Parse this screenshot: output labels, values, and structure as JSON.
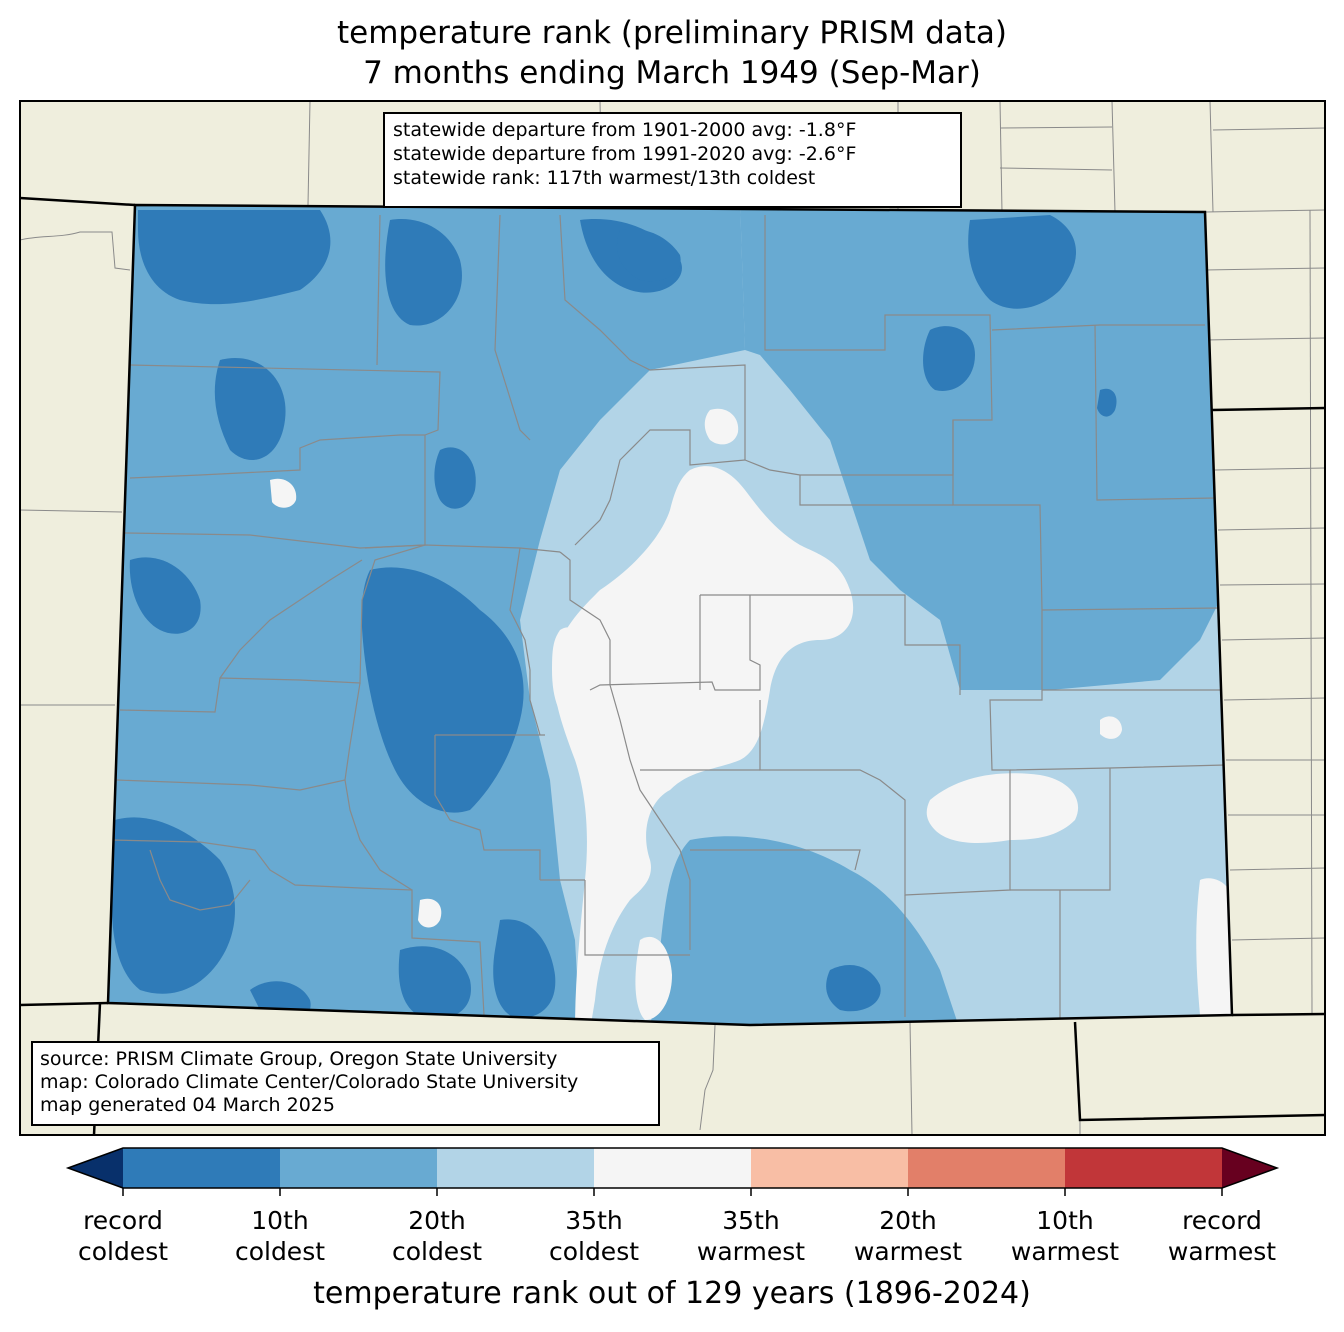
{
  "title": {
    "line1": "temperature rank (preliminary PRISM data)",
    "line2": "7 months ending March 1949 (Sep-Mar)"
  },
  "stats": {
    "line1": "statewide departure from 1901-2000 avg: -1.8°F",
    "line2": "statewide departure from 1991-2020 avg: -2.6°F",
    "line3": "statewide rank: 117th warmest/13th coldest"
  },
  "source": {
    "line1": "source: PRISM Climate Group, Oregon State University",
    "line2": "map: Colorado Climate Center/Colorado State University",
    "line3": "map generated 04 March 2025"
  },
  "legend": {
    "title": "temperature rank out of 129 years (1896-2024)",
    "labels": [
      {
        "top": "record",
        "bottom": "coldest"
      },
      {
        "top": "10th",
        "bottom": "coldest"
      },
      {
        "top": "20th",
        "bottom": "coldest"
      },
      {
        "top": "35th",
        "bottom": "coldest"
      },
      {
        "top": "35th",
        "bottom": "warmest"
      },
      {
        "top": "20th",
        "bottom": "warmest"
      },
      {
        "top": "10th",
        "bottom": "warmest"
      },
      {
        "top": "record",
        "bottom": "warmest"
      }
    ],
    "colors": [
      "#08306b",
      "#2f7bb8",
      "#68aad2",
      "#b2d4e7",
      "#f5f5f5",
      "#f8bea5",
      "#e27f69",
      "#c13639",
      "#67001f"
    ]
  },
  "colors": {
    "land": "#efeedd",
    "record_coldest_to_10th": "#2f7bb8",
    "10th_to_20th_coldest": "#68aad2",
    "20th_to_35th_coldest": "#b2d4e7",
    "near_normal": "#f5f5f5"
  }
}
